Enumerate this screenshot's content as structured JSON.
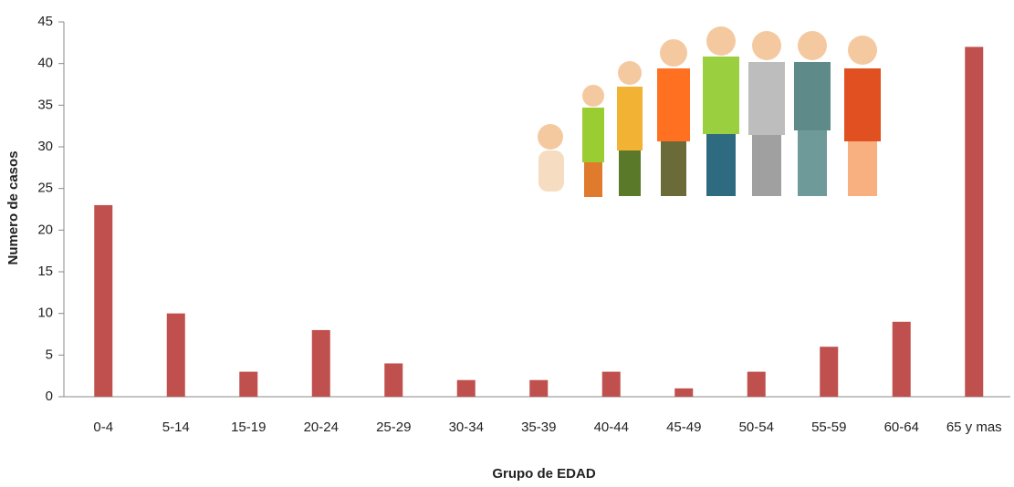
{
  "chart_data": {
    "type": "bar",
    "x_label": "Grupo de EDAD",
    "y_label": "Numero de casos",
    "categories": [
      "0-4",
      "5-14",
      "15-19",
      "20-24",
      "25-29",
      "30-34",
      "35-39",
      "40-44",
      "45-49",
      "50-54",
      "55-59",
      "60-64",
      "65 y mas"
    ],
    "values": [
      23,
      10,
      3,
      8,
      4,
      2,
      2,
      3,
      1,
      3,
      6,
      9,
      42
    ],
    "color": "#c0504d",
    "ylim": [
      0,
      45
    ],
    "yticks": [
      0,
      5,
      10,
      15,
      20,
      25,
      30,
      35,
      40,
      45
    ],
    "grid": false
  }
}
